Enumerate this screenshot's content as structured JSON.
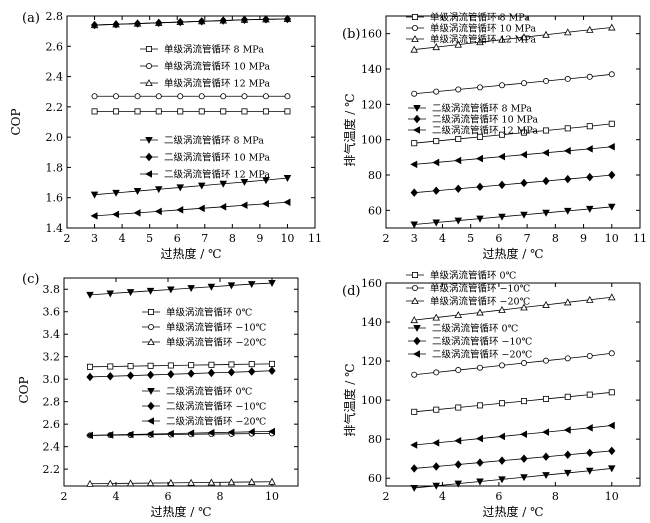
{
  "chart_data": [
    {
      "type": "line",
      "id": "a",
      "panel_label": "(a)",
      "xlabel": "过热度 / ℃",
      "ylabel": "COP",
      "xlim": [
        2,
        11
      ],
      "ylim": [
        1.4,
        2.8
      ],
      "xticks": [
        "2",
        "3",
        "4",
        "5",
        "6",
        "7",
        "8",
        "9",
        "10",
        "11"
      ],
      "yticks": [
        "1.4",
        "1.6",
        "1.8",
        "2.0",
        "2.2",
        "2.4",
        "2.6",
        "2.8"
      ],
      "x": [
        3,
        3.78,
        4.56,
        5.33,
        6.11,
        6.89,
        7.67,
        8.44,
        9.22,
        10
      ],
      "series": [
        {
          "name": "单级涡流管循环 8 MPa",
          "marker": "square-open",
          "values": [
            2.17,
            2.17,
            2.17,
            2.17,
            2.17,
            2.17,
            2.17,
            2.17,
            2.17,
            2.17
          ]
        },
        {
          "name": "单级涡流管循环 10 MPa",
          "marker": "circle-open",
          "values": [
            2.27,
            2.27,
            2.27,
            2.27,
            2.27,
            2.27,
            2.27,
            2.27,
            2.27,
            2.27
          ]
        },
        {
          "name": "单级涡流管循环 12 MPa",
          "marker": "triangle-up-open",
          "values": [
            2.74,
            2.745,
            2.75,
            2.755,
            2.76,
            2.765,
            2.77,
            2.775,
            2.778,
            2.78
          ]
        },
        {
          "name": "二级涡流管循环 8 MPa",
          "marker": "triangle-down-filled",
          "values": [
            1.62,
            1.632,
            1.644,
            1.656,
            1.668,
            1.68,
            1.692,
            1.704,
            1.716,
            1.73
          ]
        },
        {
          "name": "二级涡流管循环 10 MPa",
          "marker": "diamond-filled",
          "values": [
            2.74,
            2.745,
            2.75,
            2.755,
            2.76,
            2.765,
            2.77,
            2.775,
            2.778,
            2.78
          ]
        },
        {
          "name": "二级涡流管循环 12 MPa",
          "marker": "triangle-left-filled",
          "values": [
            1.48,
            1.49,
            1.5,
            1.51,
            1.52,
            1.53,
            1.54,
            1.55,
            1.56,
            1.57
          ]
        }
      ]
    },
    {
      "type": "line",
      "id": "b",
      "panel_label": "(b)",
      "xlabel": "过热度 / ℃",
      "ylabel": "排气温度 / ℃",
      "xlim": [
        2,
        11
      ],
      "ylim": [
        50,
        170
      ],
      "xticks": [
        "2",
        "3",
        "4",
        "5",
        "6",
        "7",
        "8",
        "9",
        "10",
        "11"
      ],
      "yticks": [
        "60",
        "80",
        "100",
        "120",
        "140",
        "160"
      ],
      "x": [
        3,
        3.78,
        4.56,
        5.33,
        6.11,
        6.89,
        7.67,
        8.44,
        9.22,
        10
      ],
      "series": [
        {
          "name": "单级涡流管循环 8 MPa",
          "marker": "square-open",
          "values": [
            98,
            99.2,
            100.4,
            101.6,
            102.8,
            104,
            105.2,
            106.4,
            107.6,
            109
          ]
        },
        {
          "name": "单级涡流管循环 10 MPa",
          "marker": "circle-open",
          "values": [
            126,
            127.2,
            128.4,
            129.6,
            130.8,
            132,
            133.2,
            134.4,
            135.6,
            137
          ]
        },
        {
          "name": "单级涡流管循环 12 MPa",
          "marker": "triangle-up-open",
          "values": [
            151,
            152.4,
            153.8,
            155.2,
            156.6,
            158,
            159.4,
            160.8,
            162.2,
            163.5
          ]
        },
        {
          "name": "二级涡流管循环 8 MPa",
          "marker": "triangle-down-filled",
          "values": [
            52,
            53.1,
            54.2,
            55.3,
            56.4,
            57.5,
            58.6,
            59.7,
            60.8,
            62
          ]
        },
        {
          "name": "二级涡流管循环 10 MPa",
          "marker": "diamond-filled",
          "values": [
            70,
            71.1,
            72.2,
            73.3,
            74.4,
            75.5,
            76.6,
            77.7,
            78.8,
            80
          ]
        },
        {
          "name": "二级涡流管循环 12 MPa",
          "marker": "triangle-left-filled",
          "values": [
            86,
            87.1,
            88.2,
            89.3,
            90.4,
            91.5,
            92.6,
            93.7,
            94.8,
            96
          ]
        }
      ]
    },
    {
      "type": "line",
      "id": "c",
      "panel_label": "(c)",
      "xlabel": "过热度 / ℃",
      "ylabel": "COP",
      "xlim": [
        2,
        11
      ],
      "ylim": [
        2.05,
        3.9
      ],
      "xticks": [
        "2",
        "4",
        "6",
        "8",
        "10"
      ],
      "yticks": [
        "2.2",
        "2.4",
        "2.6",
        "2.8",
        "3.0",
        "3.2",
        "3.4",
        "3.6",
        "3.8"
      ],
      "x": [
        3,
        3.78,
        4.56,
        5.33,
        6.11,
        6.89,
        7.67,
        8.44,
        9.22,
        10
      ],
      "series": [
        {
          "name": "单级涡流管循环 0℃",
          "marker": "square-open",
          "values": [
            3.11,
            3.113,
            3.116,
            3.119,
            3.122,
            3.125,
            3.128,
            3.131,
            3.134,
            3.136
          ]
        },
        {
          "name": "单级涡流管循环 −10℃",
          "marker": "circle-open",
          "values": [
            2.5,
            2.502,
            2.504,
            2.506,
            2.508,
            2.51,
            2.512,
            2.514,
            2.516,
            2.518
          ]
        },
        {
          "name": "单级涡流管循环 −20℃",
          "marker": "triangle-up-open",
          "values": [
            2.07,
            2.072,
            2.074,
            2.076,
            2.078,
            2.08,
            2.082,
            2.084,
            2.086,
            2.088
          ]
        },
        {
          "name": "二级涡流管循环 0℃",
          "marker": "triangle-down-filled",
          "values": [
            3.75,
            3.762,
            3.774,
            3.786,
            3.798,
            3.81,
            3.822,
            3.834,
            3.846,
            3.855
          ]
        },
        {
          "name": "二级涡流管循环 −10℃",
          "marker": "diamond-filled",
          "values": [
            3.02,
            3.026,
            3.032,
            3.038,
            3.044,
            3.05,
            3.056,
            3.062,
            3.068,
            3.075
          ]
        },
        {
          "name": "二级涡流管循环 −20℃",
          "marker": "triangle-left-filled",
          "values": [
            2.5,
            2.504,
            2.508,
            2.512,
            2.516,
            2.52,
            2.524,
            2.528,
            2.532,
            2.535
          ]
        }
      ]
    },
    {
      "type": "line",
      "id": "d",
      "panel_label": "(d)",
      "xlabel": "过热度 / ℃",
      "ylabel": "排气温度 / ℃",
      "xlim": [
        2,
        11
      ],
      "ylim": [
        56,
        160
      ],
      "xticks": [
        "2",
        "4",
        "6",
        "8",
        "10"
      ],
      "yticks": [
        "60",
        "80",
        "100",
        "120",
        "140",
        "160"
      ],
      "x": [
        3,
        3.78,
        4.56,
        5.33,
        6.11,
        6.89,
        7.67,
        8.44,
        9.22,
        10
      ],
      "series": [
        {
          "name": "单级涡流管循环 0℃",
          "marker": "square-open",
          "values": [
            94,
            95.1,
            96.2,
            97.3,
            98.4,
            99.5,
            100.6,
            101.7,
            102.8,
            104
          ]
        },
        {
          "name": "单级涡流管循环 −10℃",
          "marker": "circle-open",
          "values": [
            113,
            114.2,
            115.4,
            116.6,
            117.8,
            119,
            120.2,
            121.4,
            122.6,
            124
          ]
        },
        {
          "name": "单级涡流管循环 −20℃",
          "marker": "triangle-up-open",
          "values": [
            141,
            142.3,
            143.6,
            144.9,
            146.2,
            147.5,
            148.8,
            150.1,
            151.4,
            152.7
          ]
        },
        {
          "name": "二级涡流管循环 0℃",
          "marker": "triangle-down-filled",
          "values": [
            55,
            56.1,
            57.2,
            58.3,
            59.4,
            60.5,
            61.6,
            62.7,
            63.8,
            65
          ]
        },
        {
          "name": "二级涡流管循环 −10℃",
          "marker": "diamond-filled",
          "values": [
            65,
            66,
            67,
            68,
            69,
            70,
            71,
            72,
            73,
            74
          ]
        },
        {
          "name": "二级涡流管循环 −20℃",
          "marker": "triangle-left-filled",
          "values": [
            77,
            78.1,
            79.2,
            80.3,
            81.4,
            82.5,
            83.6,
            84.7,
            85.8,
            87
          ]
        }
      ]
    }
  ]
}
